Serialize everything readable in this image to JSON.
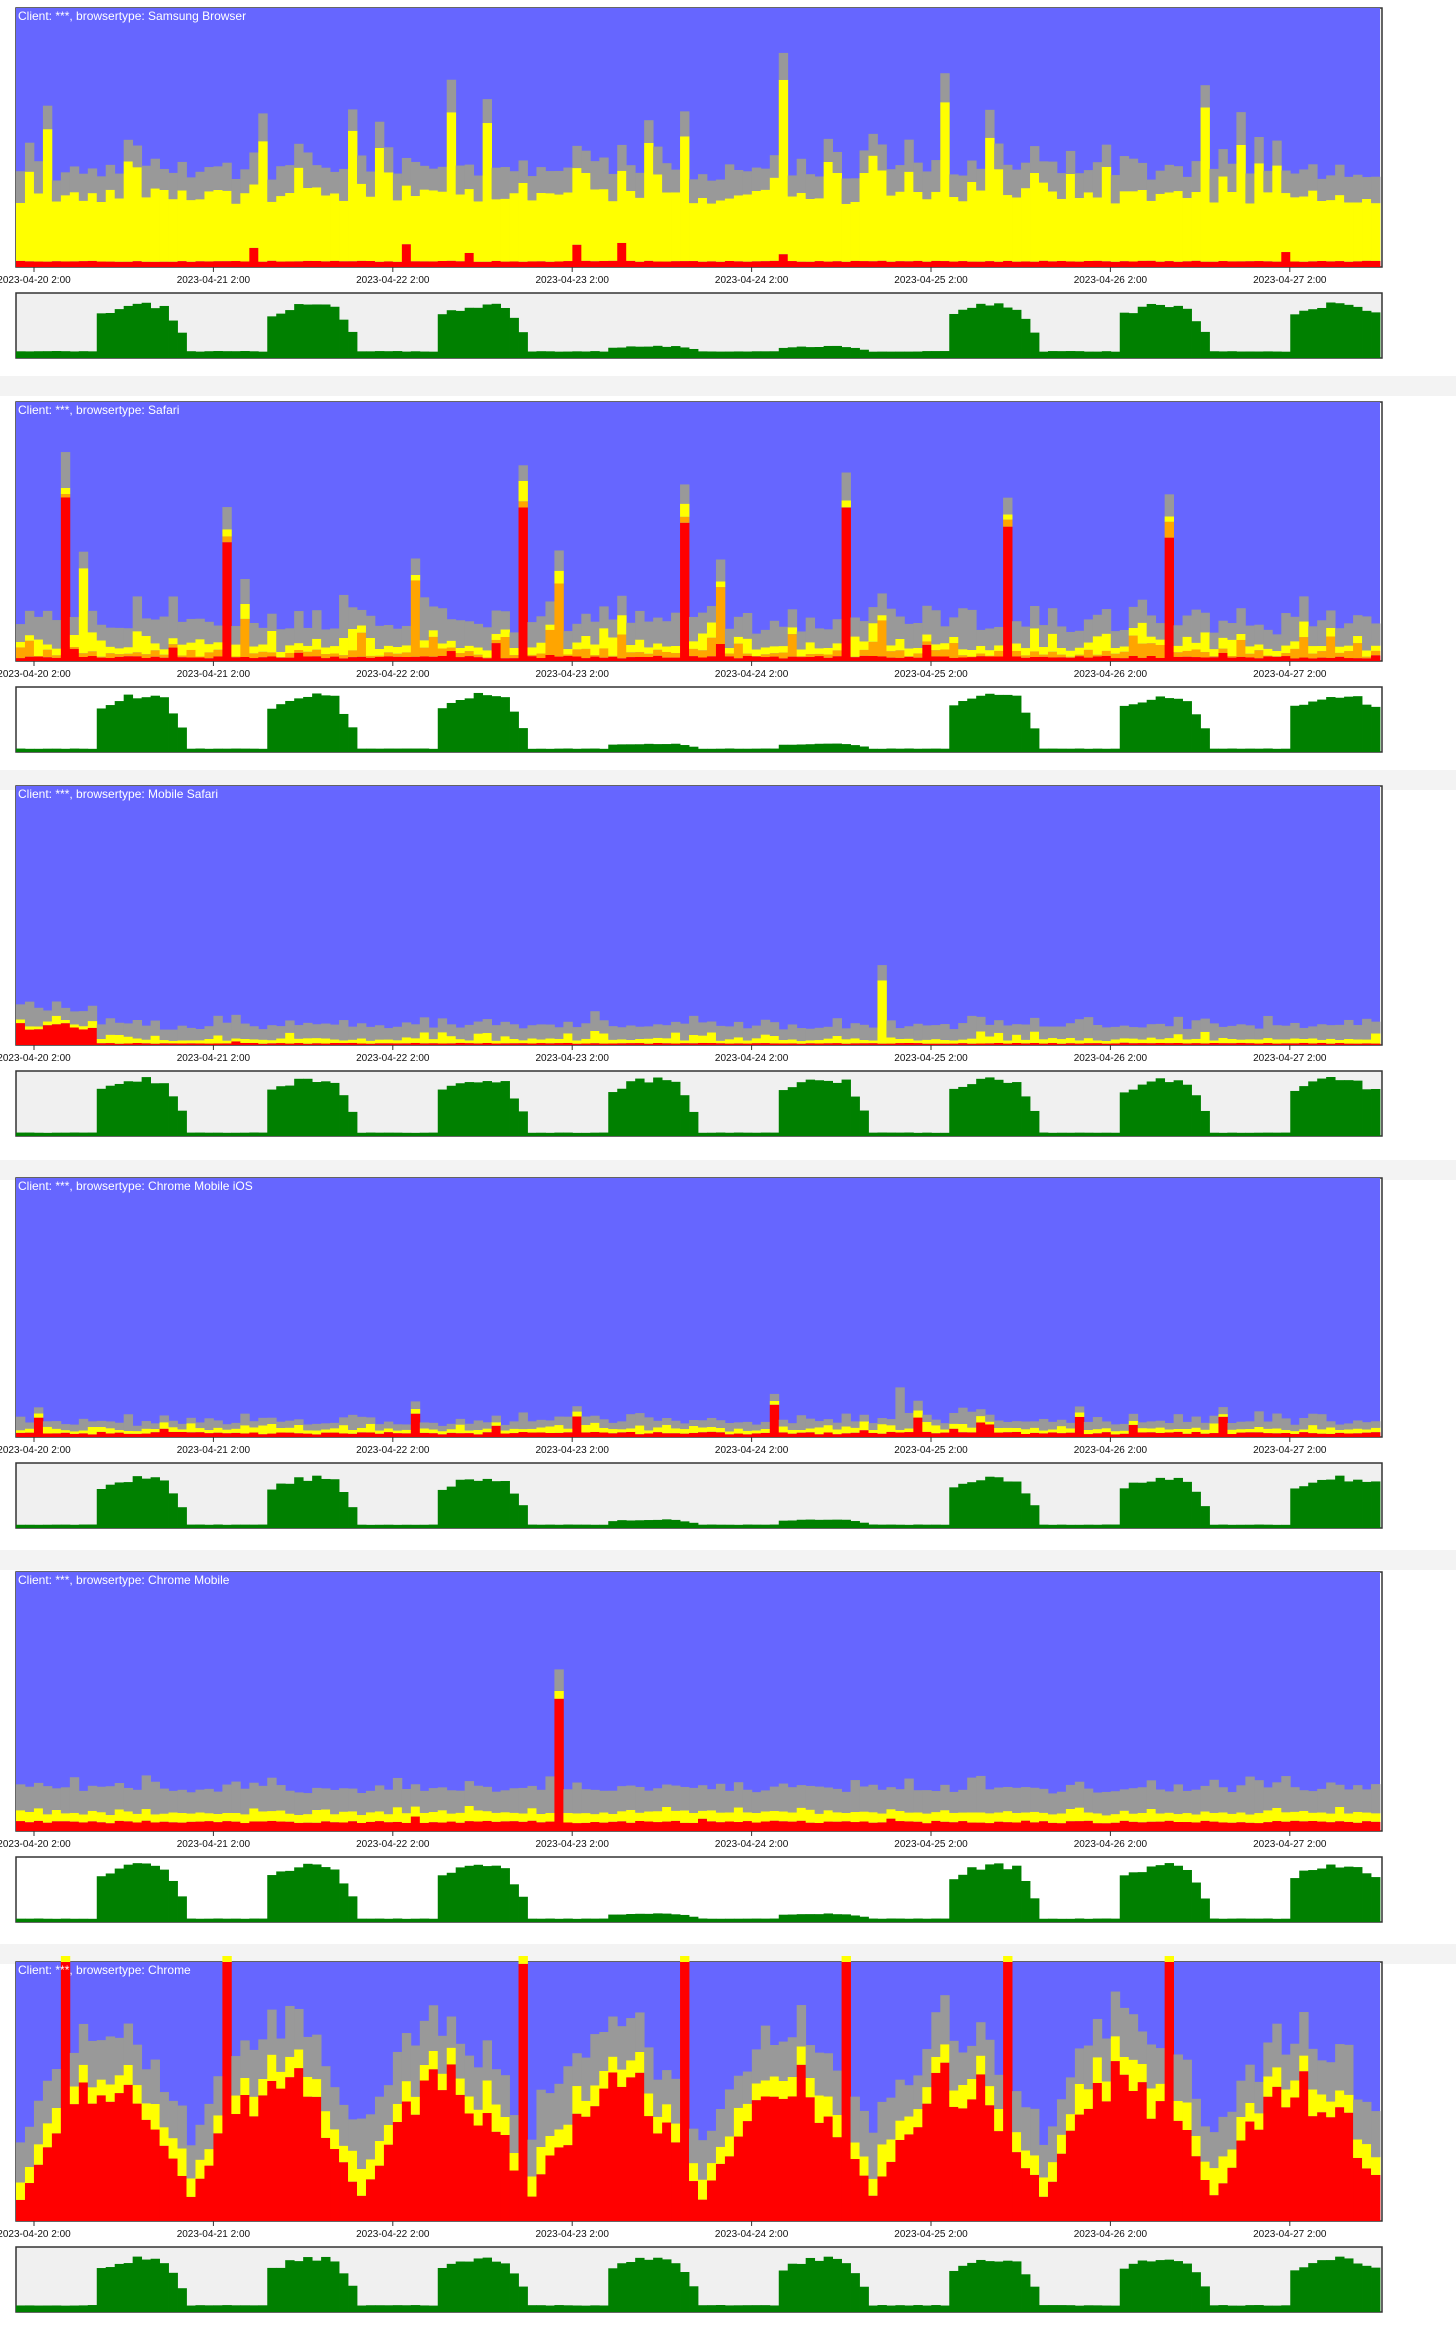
{
  "colors": {
    "blue": "#6666ff",
    "gray": "#999999",
    "yellow": "#ffff00",
    "orange": "#ffa500",
    "red": "#ff0000",
    "green": "#008000",
    "grey_bg": "#f0f0f0",
    "white_bg": "#ffffff"
  },
  "axis": {
    "ticks": [
      "2023-04-20 2:00",
      "2023-04-21 2:00",
      "2023-04-22 2:00",
      "2023-04-23 2:00",
      "2023-04-24 2:00",
      "2023-04-25 2:00",
      "2023-04-26 2:00",
      "2023-04-27 2:00"
    ]
  },
  "chart_data": [
    {
      "type": "bar",
      "title": "Client: ***, browsertype: Samsung Browser",
      "stacked": true,
      "bg": "grey",
      "stack_order": [
        "red",
        "orange",
        "yellow",
        "gray",
        "blue"
      ],
      "fill_layer": "blue",
      "x_ticks": [
        "2023-04-20 2:00",
        "2023-04-21 2:00",
        "2023-04-22 2:00",
        "2023-04-23 2:00",
        "2023-04-24 2:00",
        "2023-04-25 2:00",
        "2023-04-26 2:00",
        "2023-04-27 2:00"
      ],
      "ylim": [
        0,
        100
      ],
      "main_profile": {
        "red": [
          2,
          0.4,
          16
        ],
        "orange": [
          0,
          0,
          0
        ],
        "yellow": [
          22,
          6,
          12,
          0
        ],
        "gray": [
          8,
          3,
          4,
          0
        ],
        "spikes": [
          [
            3,
            "yellow",
            20
          ],
          [
            27,
            "yellow",
            10
          ],
          [
            37,
            "yellow",
            18
          ],
          [
            40,
            "yellow",
            20
          ],
          [
            48,
            "yellow",
            25
          ],
          [
            52,
            "yellow",
            30
          ],
          [
            70,
            "yellow",
            15
          ],
          [
            74,
            "yellow",
            22
          ],
          [
            85,
            "yellow",
            40
          ],
          [
            95,
            "yellow",
            15
          ],
          [
            103,
            "yellow",
            26
          ],
          [
            108,
            "yellow",
            20
          ],
          [
            132,
            "yellow",
            28
          ],
          [
            136,
            "yellow",
            18
          ]
        ]
      },
      "activity_profile": {
        "day": [
          14,
          12,
          5,
          0
        ],
        "night": 2,
        "flat_days": [
          3,
          4
        ]
      }
    },
    {
      "type": "bar",
      "title": "Client: ***, browsertype: Safari",
      "stacked": true,
      "bg": "white",
      "stack_order": [
        "red",
        "orange",
        "yellow",
        "gray",
        "blue"
      ],
      "fill_layer": "blue",
      "x_ticks": [
        "2023-04-20 2:00",
        "2023-04-21 2:00",
        "2023-04-22 2:00",
        "2023-04-23 2:00",
        "2023-04-24 2:00",
        "2023-04-25 2:00",
        "2023-04-26 2:00",
        "2023-04-27 2:00"
      ],
      "ylim": [
        0,
        100
      ],
      "main_profile": {
        "red": [
          1,
          1,
          6
        ],
        "orange": [
          3,
          2,
          8
        ],
        "yellow": [
          2,
          1,
          6,
          0
        ],
        "gray": [
          6,
          4,
          8,
          3
        ],
        "spikes": [
          [
            5,
            "red",
            62
          ],
          [
            23,
            "red",
            44
          ],
          [
            56,
            "red",
            58
          ],
          [
            74,
            "red",
            52
          ],
          [
            92,
            "red",
            58
          ],
          [
            110,
            "red",
            50
          ],
          [
            128,
            "red",
            46
          ],
          [
            7,
            "yellow",
            30
          ],
          [
            44,
            "orange",
            28
          ],
          [
            60,
            "orange",
            22
          ],
          [
            78,
            "orange",
            20
          ],
          [
            25,
            "orange",
            14
          ],
          [
            96,
            "orange",
            12
          ]
        ]
      },
      "activity_profile": {
        "day": [
          16,
          14,
          6,
          0
        ],
        "night": 1,
        "flat_days": [
          3,
          4
        ]
      }
    },
    {
      "type": "bar",
      "title": "Client: ***, browsertype: Mobile Safari",
      "stacked": true,
      "bg": "grey",
      "stack_order": [
        "red",
        "orange",
        "yellow",
        "gray",
        "blue"
      ],
      "fill_layer": "blue",
      "x_ticks": [
        "2023-04-20 2:00",
        "2023-04-21 2:00",
        "2023-04-22 2:00",
        "2023-04-23 2:00",
        "2023-04-24 2:00",
        "2023-04-25 2:00",
        "2023-04-26 2:00",
        "2023-04-27 2:00"
      ],
      "ylim": [
        0,
        100
      ],
      "main_profile": {
        "red": [
          0.5,
          0.3,
          1
        ],
        "orange": [
          0,
          0,
          0
        ],
        "yellow": [
          1,
          1,
          3,
          0
        ],
        "gray": [
          4,
          2,
          4,
          0
        ],
        "spikes": [
          [
            96,
            "yellow",
            20
          ]
        ],
        "early_red": [
          0,
          8,
          8
        ]
      },
      "activity_profile": {
        "day": [
          16,
          14,
          6,
          0
        ],
        "night": 1,
        "flat_days": []
      }
    },
    {
      "type": "bar",
      "title": "Client: ***, browsertype: Chrome Mobile iOS",
      "stacked": true,
      "bg": "grey",
      "stack_order": [
        "red",
        "orange",
        "yellow",
        "gray",
        "blue"
      ],
      "fill_layer": "blue",
      "x_ticks": [
        "2023-04-20 2:00",
        "2023-04-21 2:00",
        "2023-04-22 2:00",
        "2023-04-23 2:00",
        "2023-04-24 2:00",
        "2023-04-25 2:00",
        "2023-04-26 2:00",
        "2023-04-27 2:00"
      ],
      "ylim": [
        0,
        100
      ],
      "main_profile": {
        "red": [
          1,
          1,
          4
        ],
        "orange": [
          0,
          0,
          0
        ],
        "yellow": [
          1,
          1,
          2,
          0
        ],
        "gray": [
          2,
          1,
          4,
          0
        ],
        "spikes": [
          [
            2,
            "red",
            6
          ],
          [
            44,
            "red",
            8
          ],
          [
            62,
            "red",
            6
          ],
          [
            84,
            "red",
            8
          ],
          [
            100,
            "red",
            6
          ],
          [
            118,
            "red",
            6
          ],
          [
            134,
            "red",
            6
          ],
          [
            98,
            "gray",
            14
          ]
        ]
      },
      "activity_profile": {
        "day": [
          14,
          12,
          5,
          0
        ],
        "night": 1,
        "flat_days": [
          3,
          4
        ]
      }
    },
    {
      "type": "bar",
      "title": "Client: ***, browsertype: Chrome Mobile",
      "stacked": true,
      "bg": "white",
      "stack_order": [
        "red",
        "orange",
        "yellow",
        "gray",
        "blue"
      ],
      "fill_layer": "blue",
      "x_ticks": [
        "2023-04-20 2:00",
        "2023-04-21 2:00",
        "2023-04-22 2:00",
        "2023-04-23 2:00",
        "2023-04-24 2:00",
        "2023-04-25 2:00",
        "2023-04-26 2:00",
        "2023-04-27 2:00"
      ],
      "ylim": [
        0,
        100
      ],
      "main_profile": {
        "red": [
          3,
          1,
          2
        ],
        "orange": [
          0,
          0,
          0
        ],
        "yellow": [
          3,
          1,
          2,
          0
        ],
        "gray": [
          8,
          2,
          6,
          0
        ],
        "spikes": [
          [
            60,
            "red",
            48
          ]
        ]
      },
      "activity_profile": {
        "day": [
          16,
          14,
          6,
          0
        ],
        "night": 1,
        "flat_days": [
          3,
          4
        ]
      }
    },
    {
      "type": "bar",
      "title": "Client: ***, browsertype: Chrome",
      "stacked": true,
      "bg": "grey",
      "stack_order": [
        "red",
        "orange",
        "yellow",
        "gray",
        "blue"
      ],
      "fill_layer": "blue",
      "x_ticks": [
        "2023-04-20 2:00",
        "2023-04-21 2:00",
        "2023-04-22 2:00",
        "2023-04-23 2:00",
        "2023-04-24 2:00",
        "2023-04-25 2:00",
        "2023-04-26 2:00",
        "2023-04-27 2:00"
      ],
      "ylim": [
        0,
        100
      ],
      "main_profile": {
        "red": [
          8,
          2,
          55
        ],
        "orange": [
          0,
          0,
          0
        ],
        "yellow": [
          6,
          2,
          5,
          1
        ],
        "gray": [
          12,
          6,
          6,
          3
        ],
        "spikes": [
          [
            5,
            "red",
            92
          ],
          [
            23,
            "red",
            82
          ],
          [
            56,
            "red",
            85
          ],
          [
            74,
            "red",
            82
          ],
          [
            92,
            "red",
            85
          ],
          [
            110,
            "red",
            70
          ],
          [
            128,
            "red",
            68
          ]
        ],
        "lag_peak": true
      },
      "activity_profile": {
        "day": [
          14,
          12,
          6,
          0
        ],
        "night": 2,
        "flat_days": []
      }
    }
  ]
}
